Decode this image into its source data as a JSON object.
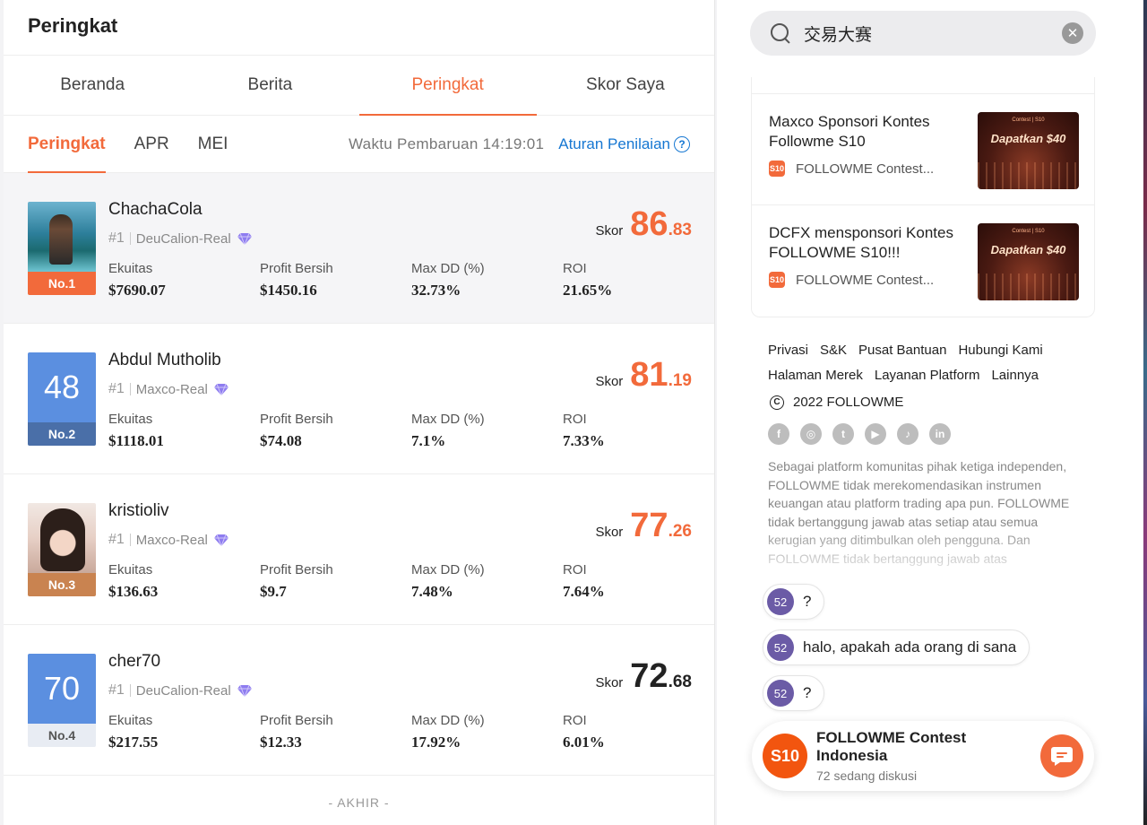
{
  "page_title": "Peringkat",
  "main_tabs": [
    {
      "label": "Beranda"
    },
    {
      "label": "Berita"
    },
    {
      "label": "Peringkat"
    },
    {
      "label": "Skor Saya"
    }
  ],
  "sub_tabs": [
    {
      "label": "Peringkat"
    },
    {
      "label": "APR"
    },
    {
      "label": "MEI"
    }
  ],
  "update_time": "Waktu Pembaruan 14:19:01",
  "rules_link": "Aturan Penilaian",
  "help_icon": "?",
  "stat_labels": {
    "equity": "Ekuitas",
    "profit": "Profit Bersih",
    "maxdd": "Max DD (%)",
    "roi": "ROI"
  },
  "score_label": "Skor",
  "rows": [
    {
      "name": "ChachaCola",
      "position": "#1",
      "account": "DeuCalion-Real",
      "rank": "No.1",
      "avatar_num": "",
      "equity": "$7690.07",
      "profit": "$1450.16",
      "maxdd": "32.73%",
      "roi": "21.65%",
      "score_int": "86",
      "score_dec": ".83",
      "badge_color": "#f26a3b"
    },
    {
      "name": "Abdul Mutholib",
      "position": "#1",
      "account": "Maxco-Real",
      "rank": "No.2",
      "avatar_num": "48",
      "equity": "$1118.01",
      "profit": "$74.08",
      "maxdd": "7.1%",
      "roi": "7.33%",
      "score_int": "81",
      "score_dec": ".19",
      "badge_color": "#4a6fa8"
    },
    {
      "name": "kristioliv",
      "position": "#1",
      "account": "Maxco-Real",
      "rank": "No.3",
      "avatar_num": "",
      "equity": "$136.63",
      "profit": "$9.7",
      "maxdd": "7.48%",
      "roi": "7.64%",
      "score_int": "77",
      "score_dec": ".26",
      "badge_color": "#c98350"
    },
    {
      "name": "cher70",
      "position": "#1",
      "account": "DeuCalion-Real",
      "rank": "No.4",
      "avatar_num": "70",
      "equity": "$217.55",
      "profit": "$12.33",
      "maxdd": "17.92%",
      "roi": "6.01%",
      "score_int": "72",
      "score_dec": ".68",
      "badge_color": "#e8ecf3"
    }
  ],
  "end_label": "- AKHIR -",
  "search": {
    "value": "交易大赛"
  },
  "news": [
    {
      "title": "Maxco Sponsori Kontes Followme S10",
      "source": "FOLLOWME Contest...",
      "thumb_text": "Dapatkan $40",
      "thumb_logo": "Contest | S10",
      "badge": "S10"
    },
    {
      "title": "DCFX mensponsori Kontes FOLLOWME S10!!!",
      "source": "FOLLOWME Contest...",
      "thumb_text": "Dapatkan $40",
      "thumb_logo": "Contest | S10",
      "badge": "S10"
    }
  ],
  "footer_links": [
    "Privasi",
    "S&K",
    "Pusat Bantuan",
    "Hubungi Kami",
    "Halaman Merek",
    "Layanan Platform",
    "Lainnya"
  ],
  "copyright": "2022 FOLLOWME",
  "copyright_icon": "C",
  "socials": [
    {
      "icon": "facebook-icon",
      "glyph": "f"
    },
    {
      "icon": "instagram-icon",
      "glyph": "◎"
    },
    {
      "icon": "twitter-icon",
      "glyph": "t"
    },
    {
      "icon": "youtube-icon",
      "glyph": "▶"
    },
    {
      "icon": "tiktok-icon",
      "glyph": "♪"
    },
    {
      "icon": "linkedin-icon",
      "glyph": "in"
    }
  ],
  "disclaimer": "Sebagai platform komunitas pihak ketiga independen, FOLLOWME tidak merekomendasikan instrumen keuangan atau platform trading apa pun. FOLLOWME tidak bertanggung jawab atas setiap atau semua kerugian yang ditimbulkan oleh pengguna. Dan FOLLOWME tidak bertanggung jawab atas",
  "chat_messages": [
    {
      "avatar": "52",
      "text": "?"
    },
    {
      "avatar": "52",
      "text": "halo, apakah ada orang di sana"
    },
    {
      "avatar": "52",
      "text": "?"
    }
  ],
  "group": {
    "logo": "S10",
    "name": "FOLLOWME Contest Indonesia",
    "sub": "72 sedang diskusi"
  },
  "colors": {
    "accent": "#f26a3b",
    "link": "#1677d2",
    "gem": "#8e7cf0"
  }
}
